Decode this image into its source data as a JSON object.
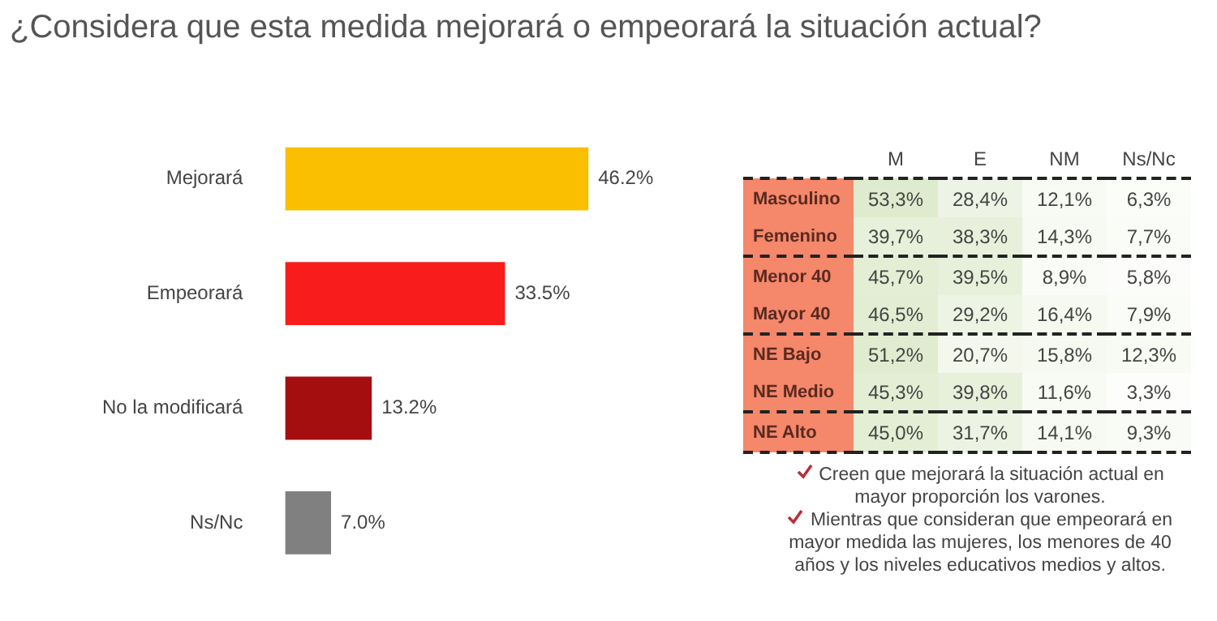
{
  "chart_data": [
    {
      "type": "bar",
      "orientation": "horizontal",
      "title": "¿Considera que esta medida mejorará o empeorará la situación actual?",
      "categories": [
        "Mejorará",
        "Empeorará",
        "No la modificará",
        "Ns/Nc"
      ],
      "values": [
        46.2,
        33.5,
        13.2,
        7.0
      ],
      "value_labels": [
        "46.2%",
        "33.5%",
        "13.2%",
        "7.0%"
      ],
      "colors": [
        "#f9bf00",
        "#f91c1c",
        "#a50e0e",
        "#808080"
      ]
    },
    {
      "type": "heatmap",
      "categories": [
        "M",
        "E",
        "NM",
        "Ns/Nc"
      ],
      "y_categories": [
        "Masculino",
        "Femenino",
        "Menor 40",
        "Mayor 40",
        "NE Bajo",
        "NE Medio",
        "NE Alto"
      ],
      "cells": [
        [
          53.3,
          28.4,
          12.1,
          6.3
        ],
        [
          39.7,
          38.3,
          14.3,
          7.7
        ],
        [
          45.7,
          39.5,
          8.9,
          5.8
        ],
        [
          46.5,
          29.2,
          16.4,
          7.9
        ],
        [
          51.2,
          20.7,
          15.8,
          12.3
        ],
        [
          45.3,
          39.8,
          11.6,
          3.3
        ],
        [
          45.0,
          31.7,
          14.1,
          9.3
        ]
      ],
      "cell_labels": [
        [
          "53,3%",
          "28,4%",
          "12,1%",
          "6,3%"
        ],
        [
          "39,7%",
          "38,3%",
          "14,3%",
          "7,7%"
        ],
        [
          "45,7%",
          "39,5%",
          "8,9%",
          "5,8%"
        ],
        [
          "46,5%",
          "29,2%",
          "16,4%",
          "7,9%"
        ],
        [
          "51,2%",
          "20,7%",
          "15,8%",
          "12,3%"
        ],
        [
          "45,3%",
          "39,8%",
          "11,6%",
          "3,3%"
        ],
        [
          "45,0%",
          "31,7%",
          "14,1%",
          "9,3%"
        ]
      ],
      "annotations": [
        "Creen que mejorará la situación actual en mayor proporción los varones.",
        "Mientras que consideran que empeorará en mayor medida las mujeres, los menores de 40 años y los niveles educativos medios y altos."
      ]
    }
  ]
}
